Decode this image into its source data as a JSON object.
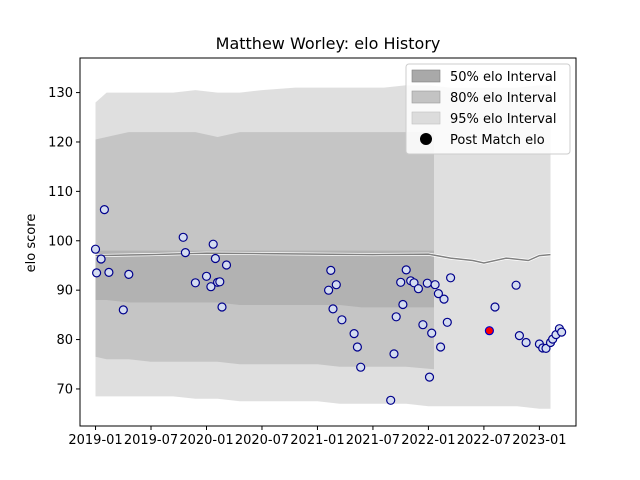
{
  "chart_data": {
    "type": "scatter",
    "title": "Matthew Worley: elo History",
    "xlabel": "",
    "ylabel": "elo score",
    "xlim": [
      2018.86,
      2023.33
    ],
    "ylim": [
      62.5,
      137
    ],
    "x_ticks": [
      {
        "value": 2019.0,
        "label": "2019-01"
      },
      {
        "value": 2019.5,
        "label": "2019-07"
      },
      {
        "value": 2020.0,
        "label": "2020-01"
      },
      {
        "value": 2020.5,
        "label": "2020-07"
      },
      {
        "value": 2021.0,
        "label": "2021-01"
      },
      {
        "value": 2021.5,
        "label": "2021-07"
      },
      {
        "value": 2022.0,
        "label": "2022-01"
      },
      {
        "value": 2022.5,
        "label": "2022-07"
      },
      {
        "value": 2023.0,
        "label": "2023-01"
      }
    ],
    "y_ticks": [
      70,
      80,
      90,
      100,
      110,
      120,
      130
    ],
    "legend": {
      "position": "top-right",
      "entries": [
        {
          "label": "50% elo Interval",
          "color": "#a9a9a9"
        },
        {
          "label": "80% elo Interval",
          "color": "#c3c3c3"
        },
        {
          "label": "95% elo Interval",
          "color": "#dcdcdc"
        },
        {
          "label": "Post Match elo",
          "color": "#000000"
        }
      ]
    },
    "colors": {
      "marker_face": "#d4dcf0",
      "marker_edge": "#00008b",
      "highlight_face": "#ff0000",
      "highlight_edge": "#0000cd",
      "median_line": "#808080",
      "band_95": "#dcdcdc",
      "band_80": "#c3c3c3",
      "band_50": "#a9a9a9"
    },
    "bands": {
      "x": [
        2019.0,
        2019.1,
        2019.3,
        2019.5,
        2019.7,
        2019.9,
        2020.1,
        2020.3,
        2020.5,
        2020.8,
        2021.0,
        2021.2,
        2021.4,
        2021.6,
        2021.8,
        2022.0,
        2022.2,
        2022.4,
        2022.6,
        2022.8,
        2023.0,
        2023.1
      ],
      "upper_95": [
        128,
        130,
        130,
        130,
        130,
        130.5,
        130,
        130,
        130.5,
        131,
        131,
        131,
        131,
        131,
        131.5,
        131.5,
        131,
        131,
        131,
        131,
        131.5,
        131.5
      ],
      "lower_95": [
        68.5,
        68.5,
        68.5,
        68.5,
        68.5,
        68,
        68,
        67.5,
        67.5,
        67.5,
        67.5,
        67,
        67,
        67,
        67,
        66.5,
        66.5,
        66.5,
        66.5,
        66.5,
        66,
        66
      ],
      "upper_80": [
        120.5,
        121,
        122,
        122,
        122,
        122,
        121,
        122,
        122,
        122,
        122,
        122,
        122,
        122,
        122,
        122
      ],
      "lower_80": [
        76.5,
        76,
        76,
        75.5,
        75.5,
        75.5,
        75.5,
        75,
        75,
        75,
        75,
        74.5,
        74.5,
        74.5,
        74.5,
        74
      ],
      "upper_50": [
        98,
        98,
        98,
        98,
        98,
        98,
        98,
        98,
        98,
        98,
        98,
        98,
        98,
        98,
        98,
        98
      ],
      "lower_50": [
        88,
        88,
        87.5,
        87.5,
        87.5,
        87.5,
        87.5,
        87,
        87,
        87,
        87,
        87,
        86.5,
        86.5,
        86.5,
        86.5
      ],
      "band_50_80_end": 2022.05
    },
    "median": {
      "x": [
        2019.0,
        2019.5,
        2020.0,
        2020.5,
        2021.0,
        2021.5,
        2022.0,
        2022.2,
        2022.4,
        2022.5,
        2022.7,
        2022.9,
        2023.0,
        2023.1
      ],
      "y": [
        97,
        97.2,
        97.5,
        97.4,
        97.3,
        97.2,
        97.3,
        96.5,
        96,
        95.5,
        96.5,
        96,
        97,
        97.2
      ]
    },
    "series": [
      {
        "name": "Post Match elo",
        "x": [
          2019.0,
          2019.01,
          2019.05,
          2019.08,
          2019.12,
          2019.25,
          2019.3,
          2019.79,
          2019.81,
          2019.9,
          2020.0,
          2020.04,
          2020.06,
          2020.08,
          2020.1,
          2020.12,
          2020.14,
          2020.18,
          2021.1,
          2021.12,
          2021.14,
          2021.17,
          2021.22,
          2021.33,
          2021.36,
          2021.39,
          2021.66,
          2021.69,
          2021.71,
          2021.75,
          2021.77,
          2021.8,
          2021.84,
          2021.87,
          2021.91,
          2021.95,
          2021.99,
          2022.01,
          2022.03,
          2022.06,
          2022.09,
          2022.11,
          2022.14,
          2022.17,
          2022.2,
          2022.6,
          2022.79,
          2022.82,
          2022.88,
          2023.0,
          2023.03,
          2023.06,
          2023.1,
          2023.12,
          2023.15,
          2023.18,
          2023.2
        ],
        "y": [
          98.3,
          93.5,
          96.3,
          106.3,
          93.6,
          86.0,
          93.2,
          100.7,
          97.6,
          91.5,
          92.8,
          90.7,
          99.3,
          96.4,
          91.6,
          91.7,
          86.6,
          95.1,
          90.0,
          94.0,
          86.2,
          91.1,
          84.0,
          81.2,
          78.5,
          74.4,
          67.7,
          77.1,
          84.6,
          91.6,
          87.1,
          94.1,
          91.9,
          91.5,
          90.3,
          83.0,
          91.4,
          72.4,
          81.3,
          91.1,
          89.3,
          78.5,
          88.2,
          83.5,
          92.5,
          86.6,
          91.0,
          80.8,
          79.4,
          79.1,
          78.3,
          78.2,
          79.4,
          80.1,
          81.0,
          82.2,
          81.5
        ]
      }
    ],
    "highlight_point": {
      "x": 2022.55,
      "y": 81.8
    }
  }
}
